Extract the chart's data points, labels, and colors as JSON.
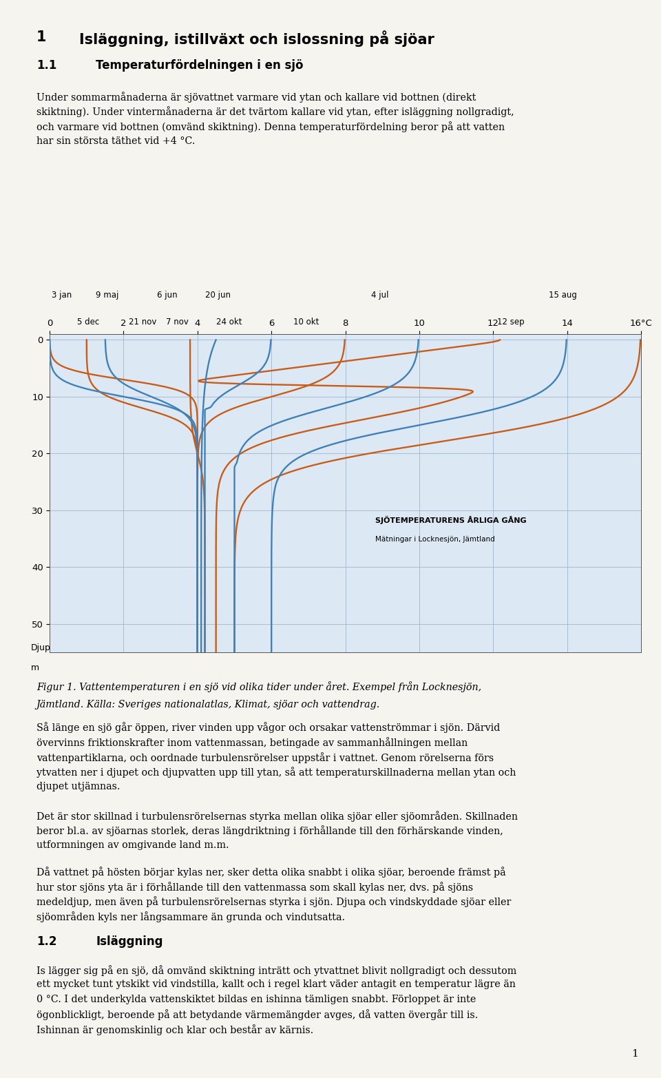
{
  "title_chapter": "1",
  "title_main": "Isläggning, istillväxt och islossning på sjöar",
  "section_num": "1.1",
  "section_title": "Temperaturfördelningen i en sjö",
  "para1_lines": [
    "Under sommarmånaderna är sjövattnet varmare vid ytan och kallare vid bottnen (direkt",
    "skiktning). Under vintermånaderna är det tvärtom kallare vid ytan, efter isläggning nollgradigt,",
    "och varmare vid bottnen (omvänd skiktning). Denna temperaturfördelning beror på att vatten",
    "har sin största täthet vid +4 °C."
  ],
  "fig_caption_line1": "Figur 1. Vattentemperaturen i en sjö vid olika tider under året. Exempel från Locknesjön,",
  "fig_caption_line2": "Jämtland. Källa: Sveriges nationalatlas, Klimat, sjöar och vattendrag.",
  "para2_lines": [
    "Så länge en sjö går öppen, river vinden upp vågor och orsakar vattenströmmar i sjön. Därvid",
    "övervinns friktionskrafter inom vattenmassan, betingade av sammanhållningen mellan",
    "vattenpartiklarna, och oordnade turbulensrörelser uppstår i vattnet. Genom rörelserna förs",
    "ytvatten ner i djupet och djupvatten upp till ytan, så att temperaturskillnaderna mellan ytan och",
    "djupet utjämnas."
  ],
  "para3_lines": [
    "Det är stor skillnad i turbulensrörelsernas styrka mellan olika sjöar eller sjöområden. Skillnaden",
    "beror bl.a. av sjöarnas storlek, deras längdriktning i förhållande till den förhärskande vinden,",
    "utformningen av omgivande land m.m."
  ],
  "para4_lines": [
    "Då vattnet på hösten börjar kylas ner, sker detta olika snabbt i olika sjöar, beroende främst på",
    "hur stor sjöns yta är i förhållande till den vattenmassa som skall kylas ner, dvs. på sjöns",
    "medeldjup, men även på turbulensrörelsernas styrka i sjön. Djupa och vindskyddade sjöar eller",
    "sjöområden kyls ner långsammare än grunda och vindutsatta."
  ],
  "section_num2": "1.2",
  "section_title2": "Isläggning",
  "para5_lines": [
    "Is lägger sig på en sjö, då omvänd skiktning inträtt och ytvattnet blivit nollgradigt och dessutom",
    "ett mycket tunt ytskikt vid vindstilla, kallt och i regel klart väder antagit en temperatur lägre än",
    "0 °C. I det underkylda vattenskiktet bildas en ishinna tämligen snabbt. Förloppet är inte",
    "ögonblickligt, beroende på att betydande värmemängder avges, då vatten övergår till is.",
    "Ishinnan är genomskinlig och klar och består av kärnis."
  ],
  "page_num": "1",
  "bg_color": "#f5f4ee",
  "chart_bg": "#dce9f5",
  "header_orange_bg": "#e8c898",
  "header_blue_bg": "#b8cfe0",
  "bottom_bar_color": "#c8b490",
  "orange_color": "#c85c18",
  "blue_color": "#4080b8",
  "grid_color": "#9ab0c8",
  "chart_title_line1": "SJÖTEMPERATURENS ÅRLIGA GÅNG",
  "chart_title_line2": "Mätningar i Locknesjön, Jämtland",
  "orange_labels": [
    [
      "3 jan",
      0.05
    ],
    [
      "9 maj",
      1.25
    ],
    [
      "6 jun",
      2.9
    ],
    [
      "20 jun",
      4.2
    ],
    [
      "4 jul",
      8.7
    ],
    [
      "15 aug",
      13.5
    ]
  ],
  "blue_labels": [
    [
      "5 dec",
      0.75
    ],
    [
      "21 nov",
      2.15
    ],
    [
      "7 nov",
      3.15
    ],
    [
      "24 okt",
      4.5
    ],
    [
      "10 okt",
      6.6
    ],
    [
      "12 sep",
      12.1
    ]
  ]
}
